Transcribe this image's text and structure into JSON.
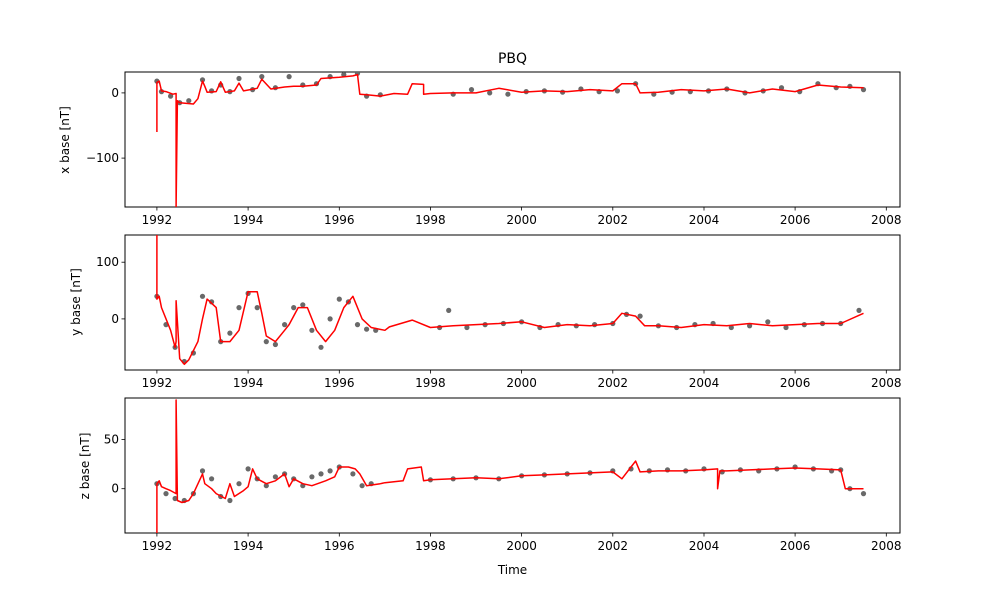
{
  "title": "PBQ",
  "xlabel": "Time",
  "colors": {
    "points": "#696969",
    "line": "#ff0000"
  },
  "x_ticks": [
    1992,
    1994,
    1996,
    1998,
    2000,
    2002,
    2004,
    2006,
    2008
  ],
  "chart_data": [
    {
      "type": "line",
      "title": "PBQ",
      "ylabel": "x base [nT]",
      "xlim": [
        1991.3,
        2008.3
      ],
      "ylim": [
        -175,
        32
      ],
      "yticks": [
        0,
        -100
      ],
      "grid": false,
      "series": [
        {
          "marker": "points",
          "x": [
            1992.0,
            1992.1,
            1992.3,
            1992.5,
            1992.7,
            1993.0,
            1993.2,
            1993.4,
            1993.6,
            1993.8,
            1994.1,
            1994.3,
            1994.6,
            1994.9,
            1995.2,
            1995.5,
            1995.8,
            1996.1,
            1996.4,
            1996.6,
            1996.9,
            1998.5,
            1998.9,
            1999.3,
            1999.7,
            2000.1,
            2000.5,
            2000.9,
            2001.3,
            2001.7,
            2002.1,
            2002.5,
            2002.9,
            2003.3,
            2003.7,
            2004.1,
            2004.5,
            2004.9,
            2005.3,
            2005.7,
            2006.1,
            2006.5,
            2006.9,
            2007.2,
            2007.5
          ],
          "y": [
            18,
            2,
            -5,
            -15,
            -12,
            20,
            3,
            12,
            2,
            22,
            5,
            25,
            8,
            25,
            12,
            14,
            25,
            28,
            30,
            -5,
            -3,
            -2,
            5,
            0,
            -2,
            2,
            3,
            1,
            6,
            2,
            3,
            14,
            -2,
            1,
            2,
            3,
            6,
            0,
            3,
            8,
            2,
            14,
            8,
            10,
            5
          ]
        },
        {
          "marker": "line",
          "x": [
            1992.0,
            1992.0,
            1992.05,
            1992.1,
            1992.2,
            1992.35,
            1992.42,
            1992.42,
            1992.45,
            1992.5,
            1992.8,
            1992.9,
            1993.0,
            1993.05,
            1993.1,
            1993.3,
            1993.4,
            1993.5,
            1993.7,
            1993.8,
            1993.9,
            1994.2,
            1994.3,
            1994.5,
            1994.8,
            1995.0,
            1995.2,
            1995.5,
            1995.6,
            1996.0,
            1996.3,
            1996.4,
            1996.45,
            1996.6,
            1996.9,
            1997.2,
            1997.5,
            1997.6,
            1997.85,
            1997.85,
            1998.0,
            1998.5,
            1999.0,
            1999.5,
            2000.0,
            2000.5,
            2001.0,
            2001.5,
            2002.0,
            2002.2,
            2002.5,
            2002.6,
            2003.0,
            2003.5,
            2004.0,
            2004.5,
            2005.0,
            2005.5,
            2006.0,
            2006.5,
            2007.0,
            2007.5
          ],
          "y": [
            -60,
            16,
            18,
            3,
            2,
            -2,
            -1,
            -175,
            -12,
            -15,
            -17,
            -9,
            18,
            10,
            1,
            2,
            17,
            1,
            3,
            15,
            3,
            7,
            21,
            6,
            9,
            10,
            10,
            12,
            22,
            24,
            26,
            28,
            -2,
            -3,
            -5,
            -1,
            -2,
            14,
            13,
            -2,
            -1,
            0,
            0,
            7,
            1,
            3,
            2,
            5,
            3,
            14,
            14,
            0,
            1,
            5,
            3,
            6,
            0,
            6,
            2,
            12,
            9,
            8
          ]
        }
      ]
    },
    {
      "type": "line",
      "ylabel": "y base [nT]",
      "xlim": [
        1991.3,
        2008.3
      ],
      "ylim": [
        -90,
        148
      ],
      "yticks": [
        100,
        0
      ],
      "grid": false,
      "series": [
        {
          "marker": "points",
          "x": [
            1992.0,
            1992.2,
            1992.4,
            1992.6,
            1992.8,
            1993.0,
            1993.2,
            1993.4,
            1993.6,
            1993.8,
            1994.0,
            1994.2,
            1994.4,
            1994.6,
            1994.8,
            1995.0,
            1995.2,
            1995.4,
            1995.6,
            1995.8,
            1996.0,
            1996.2,
            1996.4,
            1996.6,
            1996.8,
            1998.2,
            1998.4,
            1998.8,
            1999.2,
            1999.6,
            2000.0,
            2000.4,
            2000.8,
            2001.2,
            2001.6,
            2002.0,
            2002.3,
            2002.6,
            2003.0,
            2003.4,
            2003.8,
            2004.2,
            2004.6,
            2005.0,
            2005.4,
            2005.8,
            2006.2,
            2006.6,
            2007.0,
            2007.4
          ],
          "y": [
            40,
            -10,
            -50,
            -75,
            -60,
            40,
            30,
            -40,
            -25,
            20,
            45,
            20,
            -40,
            -45,
            -10,
            20,
            25,
            -20,
            -50,
            0,
            35,
            30,
            -10,
            -18,
            -20,
            -15,
            15,
            -15,
            -10,
            -8,
            -5,
            -15,
            -10,
            -12,
            -10,
            -8,
            8,
            5,
            -12,
            -15,
            -10,
            -8,
            -15,
            -12,
            -5,
            -15,
            -10,
            -8,
            -8,
            15
          ]
        },
        {
          "marker": "line",
          "x": [
            1992.0,
            1992.0,
            1992.05,
            1992.1,
            1992.3,
            1992.4,
            1992.42,
            1992.42,
            1992.5,
            1992.6,
            1992.7,
            1992.9,
            1993.0,
            1993.1,
            1993.3,
            1993.4,
            1993.6,
            1993.8,
            1994.0,
            1994.2,
            1994.3,
            1994.4,
            1994.6,
            1994.8,
            1994.9,
            1995.1,
            1995.3,
            1995.5,
            1995.7,
            1995.9,
            1996.1,
            1996.3,
            1996.5,
            1996.7,
            1997.0,
            1997.1,
            1997.6,
            1998.0,
            1998.5,
            1999.0,
            1999.5,
            2000.0,
            2000.5,
            2001.0,
            2001.5,
            2002.0,
            2002.2,
            2002.5,
            2002.7,
            2003.0,
            2003.5,
            2004.0,
            2004.5,
            2005.0,
            2005.5,
            2006.0,
            2006.5,
            2007.0,
            2007.5
          ],
          "y": [
            148,
            35,
            40,
            20,
            -20,
            -50,
            -40,
            32,
            -70,
            -80,
            -72,
            -40,
            0,
            35,
            20,
            -40,
            -40,
            -20,
            48,
            48,
            10,
            -30,
            -40,
            -20,
            -10,
            20,
            20,
            -20,
            -40,
            -20,
            20,
            40,
            0,
            -15,
            -20,
            -14,
            -2,
            -15,
            -12,
            -10,
            -8,
            -5,
            -15,
            -10,
            -12,
            -8,
            10,
            5,
            -12,
            -12,
            -15,
            -10,
            -12,
            -8,
            -12,
            -10,
            -8,
            -8,
            10
          ]
        }
      ]
    },
    {
      "type": "line",
      "xlabel": "Time",
      "ylabel": "z base [nT]",
      "xlim": [
        1991.3,
        2008.3
      ],
      "ylim": [
        -45,
        92
      ],
      "yticks": [
        50,
        0
      ],
      "grid": false,
      "series": [
        {
          "marker": "points",
          "x": [
            1992.0,
            1992.2,
            1992.4,
            1992.6,
            1992.8,
            1993.0,
            1993.2,
            1993.4,
            1993.6,
            1993.8,
            1994.0,
            1994.2,
            1994.4,
            1994.6,
            1994.8,
            1995.0,
            1995.2,
            1995.4,
            1995.6,
            1995.8,
            1996.0,
            1996.3,
            1996.5,
            1996.7,
            1998.0,
            1998.5,
            1999.0,
            1999.5,
            2000.0,
            2000.5,
            2001.0,
            2001.5,
            2002.0,
            2002.4,
            2002.8,
            2003.2,
            2003.6,
            2004.0,
            2004.4,
            2004.8,
            2005.2,
            2005.6,
            2006.0,
            2006.4,
            2006.8,
            2007.0,
            2007.2,
            2007.5
          ],
          "y": [
            5,
            -5,
            -10,
            -12,
            -5,
            18,
            10,
            -8,
            -12,
            5,
            20,
            10,
            3,
            12,
            15,
            10,
            3,
            12,
            15,
            18,
            22,
            15,
            3,
            5,
            9,
            10,
            11,
            10,
            13,
            14,
            15,
            16,
            18,
            20,
            18,
            19,
            18,
            20,
            17,
            19,
            18,
            20,
            22,
            20,
            18,
            19,
            0,
            -5
          ]
        },
        {
          "marker": "line",
          "x": [
            1992.0,
            1992.0,
            1992.05,
            1992.1,
            1992.2,
            1992.3,
            1992.42,
            1992.42,
            1992.45,
            1992.55,
            1992.7,
            1992.8,
            1993.0,
            1993.05,
            1993.2,
            1993.3,
            1993.5,
            1993.6,
            1993.7,
            1993.9,
            1994.0,
            1994.1,
            1994.2,
            1994.4,
            1994.6,
            1994.8,
            1994.9,
            1995.0,
            1995.2,
            1995.4,
            1995.7,
            1995.9,
            1996.0,
            1996.2,
            1996.35,
            1996.45,
            1996.6,
            1996.9,
            1997.0,
            1997.4,
            1997.5,
            1997.8,
            1997.85,
            1998.0,
            1998.5,
            1999.0,
            1999.5,
            2000.0,
            2000.5,
            2001.0,
            2001.5,
            2002.0,
            2002.2,
            2002.4,
            2002.5,
            2002.6,
            2003.0,
            2003.5,
            2004.0,
            2004.3,
            2004.3,
            2004.35,
            2004.5,
            2005.0,
            2005.5,
            2006.0,
            2006.5,
            2007.0,
            2007.1,
            2007.5
          ],
          "y": [
            -45,
            5,
            8,
            2,
            0,
            -2,
            -5,
            90,
            -12,
            -14,
            -12,
            -5,
            15,
            5,
            0,
            -5,
            -10,
            5,
            -8,
            -2,
            2,
            20,
            10,
            5,
            8,
            15,
            2,
            10,
            5,
            3,
            8,
            12,
            22,
            22,
            20,
            15,
            3,
            5,
            6,
            8,
            20,
            22,
            8,
            9,
            10,
            11,
            10,
            13,
            14,
            15,
            16,
            17,
            10,
            22,
            28,
            17,
            18,
            18,
            19,
            20,
            0,
            18,
            18,
            19,
            20,
            21,
            20,
            19,
            0,
            0
          ]
        }
      ]
    }
  ]
}
